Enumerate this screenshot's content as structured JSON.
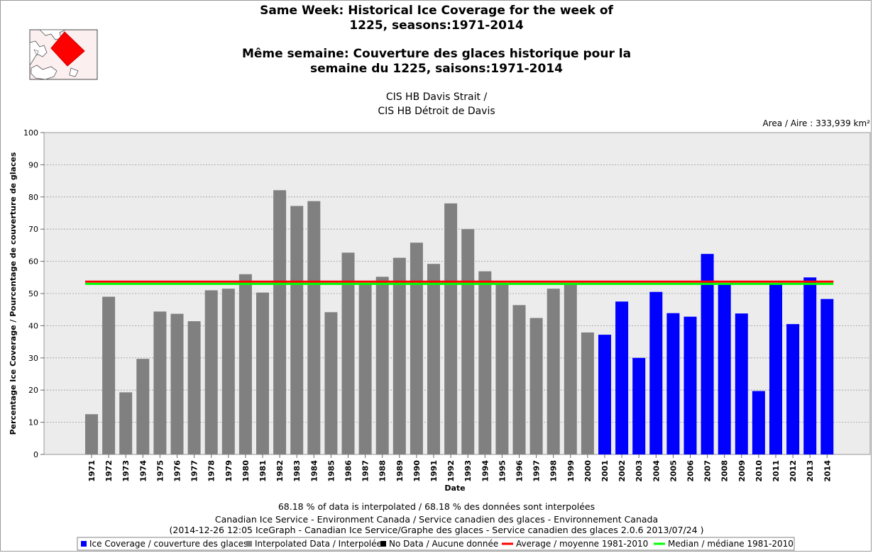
{
  "chart_data": {
    "type": "bar",
    "title_en": [
      "Same Week: Historical Ice Coverage for the week of",
      "1225, seasons:1971-2014"
    ],
    "title_fr": [
      "Même semaine: Couverture des glaces historique pour la",
      "semaine du 1225, saisons:1971-2014"
    ],
    "region": [
      "CIS HB Davis Strait /",
      "CIS HB Détroit de Davis"
    ],
    "area_label": "Area / Aire : 333,939 km²",
    "xlabel": "Date",
    "ylabel": "Percentage Ice Coverage / Pourcentage de couverture de glaces",
    "ylim": [
      0,
      100
    ],
    "yticks": [
      0,
      10,
      20,
      30,
      40,
      50,
      60,
      70,
      80,
      90,
      100
    ],
    "grid": true,
    "categories": [
      "1971",
      "1972",
      "1973",
      "1974",
      "1975",
      "1976",
      "1977",
      "1978",
      "1979",
      "1980",
      "1981",
      "1982",
      "1983",
      "1984",
      "1985",
      "1986",
      "1987",
      "1988",
      "1989",
      "1990",
      "1991",
      "1992",
      "1993",
      "1994",
      "1995",
      "1996",
      "1997",
      "1998",
      "1999",
      "2000",
      "2001",
      "2002",
      "2003",
      "2004",
      "2005",
      "2006",
      "2007",
      "2008",
      "2009",
      "2010",
      "2011",
      "2012",
      "2013",
      "2014"
    ],
    "values": [
      12.5,
      49,
      19.3,
      29.7,
      44.4,
      43.7,
      41.4,
      51,
      51.5,
      56,
      50.3,
      82.1,
      77.2,
      78.7,
      44.2,
      62.7,
      53.1,
      55.2,
      61.1,
      65.8,
      59.2,
      78,
      70,
      56.9,
      53.3,
      46.4,
      42.4,
      51.5,
      53.1,
      37.9,
      37.2,
      47.5,
      30,
      50.5,
      43.9,
      42.8,
      62.3,
      53.1,
      43.8,
      19.7,
      53.3,
      40.5,
      55,
      48.3
    ],
    "series_types": [
      "interpolated",
      "interpolated",
      "interpolated",
      "interpolated",
      "interpolated",
      "interpolated",
      "interpolated",
      "interpolated",
      "interpolated",
      "interpolated",
      "interpolated",
      "interpolated",
      "interpolated",
      "interpolated",
      "interpolated",
      "interpolated",
      "interpolated",
      "interpolated",
      "interpolated",
      "interpolated",
      "interpolated",
      "interpolated",
      "interpolated",
      "interpolated",
      "interpolated",
      "interpolated",
      "interpolated",
      "interpolated",
      "interpolated",
      "interpolated",
      "coverage",
      "coverage",
      "coverage",
      "coverage",
      "coverage",
      "coverage",
      "coverage",
      "coverage",
      "coverage",
      "coverage",
      "coverage",
      "coverage",
      "coverage",
      "coverage"
    ],
    "average": 53.7,
    "median": 53.0,
    "colors": {
      "coverage": "#0000ff",
      "interpolated": "#808080",
      "nodata": "#000000",
      "average": "#ff0000",
      "median": "#00ff00"
    },
    "footer": [
      "68.18 % of data is interpolated / 68.18 % des données sont interpolées",
      "Canadian Ice Service - Environment Canada / Service canadien des glaces - Environnement Canada",
      "(2014-12-26 12:05 IceGraph - Canadian Ice Service/Graphe des glaces - Service canadien des glaces 2.0.6 2013/07/24 )"
    ],
    "legend": [
      {
        "label": "Ice Coverage / couverture des glaces",
        "color_key": "coverage",
        "kind": "box"
      },
      {
        "label": "Interpolated Data / Interpolée",
        "color_key": "interpolated",
        "kind": "box"
      },
      {
        "label": "No Data / Aucune donnée",
        "color_key": "nodata",
        "kind": "box"
      },
      {
        "label": "Average / moyenne 1981-2010",
        "color_key": "average",
        "kind": "line"
      },
      {
        "label": "Median / médiane 1981-2010",
        "color_key": "median",
        "kind": "line"
      }
    ]
  }
}
